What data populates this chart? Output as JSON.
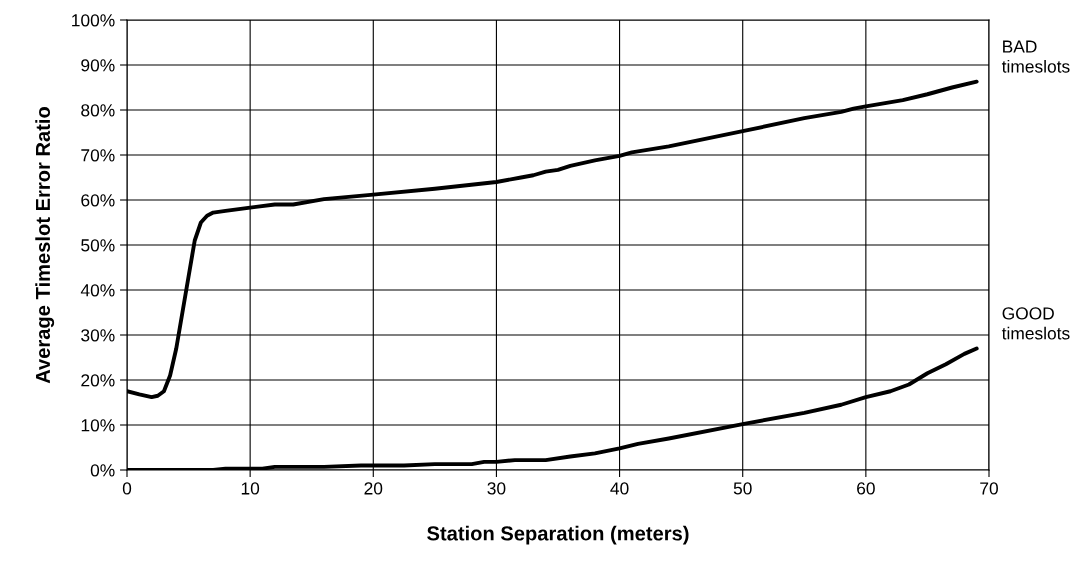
{
  "chart_data": {
    "type": "line",
    "xlabel": "Station Separation (meters)",
    "ylabel": "Average Timeslot Error Ratio",
    "series": [
      {
        "name": "BAD\ntimeslots",
        "color": "#000000",
        "x": [
          0,
          1,
          2,
          2.5,
          3,
          3.5,
          4,
          4.5,
          5,
          5.5,
          6,
          6.5,
          7,
          8,
          10,
          12,
          13.5,
          16,
          20,
          25,
          30,
          32,
          33,
          34,
          35,
          36,
          38,
          40,
          41,
          44,
          50,
          55,
          58,
          59,
          60,
          63,
          65,
          67,
          69
        ],
        "values": [
          17.5,
          16.8,
          16.2,
          16.5,
          17.5,
          21,
          27,
          35,
          43,
          51,
          55,
          56.5,
          57.2,
          57.6,
          58.3,
          59,
          59,
          60.2,
          61.2,
          62.5,
          64,
          65,
          65.5,
          66.3,
          66.7,
          67.6,
          68.8,
          69.8,
          70.6,
          71.9,
          75.3,
          78.2,
          79.6,
          80.3,
          80.8,
          82.2,
          83.5,
          85,
          86.3
        ]
      },
      {
        "name": "GOOD\ntimeslots",
        "color": "#000000",
        "x": [
          0,
          7,
          8,
          11,
          12,
          16,
          19,
          22.5,
          25,
          28,
          29,
          30,
          31.5,
          34,
          36,
          38,
          40,
          41.5,
          44,
          50,
          55,
          58,
          60,
          62,
          63.5,
          65,
          66.5,
          68,
          69
        ],
        "values": [
          0,
          0,
          0.3,
          0.3,
          0.7,
          0.7,
          1,
          1,
          1.3,
          1.3,
          1.8,
          1.8,
          2.2,
          2.2,
          3,
          3.7,
          4.8,
          5.8,
          7,
          10.2,
          12.7,
          14.5,
          16.2,
          17.5,
          19,
          21.5,
          23.5,
          25.8,
          27
        ]
      }
    ],
    "xlim": [
      0,
      70
    ],
    "xticks": [
      0,
      10,
      20,
      30,
      40,
      50,
      60,
      70
    ],
    "ylim": [
      0,
      100
    ],
    "yticks": [
      {
        "value": 0,
        "label": "0%"
      },
      {
        "value": 10,
        "label": "10%"
      },
      {
        "value": 20,
        "label": "20%"
      },
      {
        "value": 30,
        "label": "30%"
      },
      {
        "value": 40,
        "label": "40%"
      },
      {
        "value": 50,
        "label": "50%"
      },
      {
        "value": 60,
        "label": "60%"
      },
      {
        "value": 70,
        "label": "70%"
      },
      {
        "value": 80,
        "label": "80%"
      },
      {
        "value": 90,
        "label": "90%"
      },
      {
        "value": 100,
        "label": "100%"
      }
    ],
    "grid": true,
    "line_style": "solid",
    "marker": "none"
  }
}
